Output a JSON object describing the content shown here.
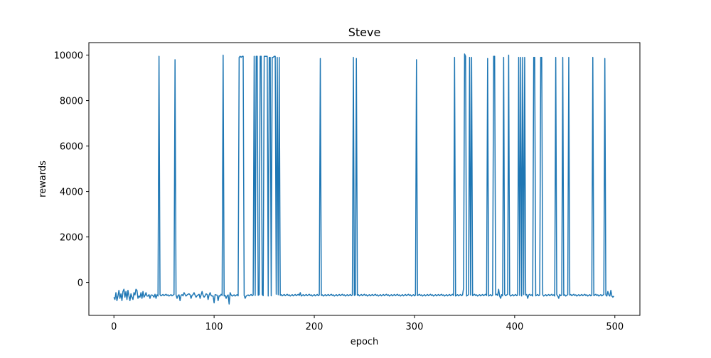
{
  "chart_data": {
    "type": "line",
    "title": "Steve",
    "xlabel": "epoch",
    "ylabel": "rewards",
    "xlim": [
      -25,
      525
    ],
    "ylim": [
      -1450,
      10550
    ],
    "x_ticks": [
      0,
      100,
      200,
      300,
      400,
      500
    ],
    "y_ticks": [
      0,
      2000,
      4000,
      6000,
      8000,
      10000
    ],
    "x_tick_labels": [
      "0",
      "100",
      "200",
      "300",
      "400",
      "500"
    ],
    "y_tick_labels": [
      "0",
      "2000",
      "4000",
      "6000",
      "8000",
      "10000"
    ],
    "grid": false,
    "legend": "none",
    "series": [
      {
        "color": "#1f77b4",
        "baseline": -560,
        "x_range": [
          0,
          499
        ],
        "spikes": [
          {
            "x": 45,
            "y": 9950
          },
          {
            "x": 61,
            "y": 9800
          },
          {
            "x": 109,
            "y": 10000
          },
          {
            "x": 125,
            "y": 9900
          },
          {
            "x": 126,
            "y": 9950
          },
          {
            "x": 127,
            "y": 9900
          },
          {
            "x": 128,
            "y": 9950
          },
          {
            "x": 129,
            "y": 9950
          },
          {
            "x": 140,
            "y": 9950
          },
          {
            "x": 142,
            "y": 9950
          },
          {
            "x": 143,
            "y": 9950
          },
          {
            "x": 146,
            "y": 9950
          },
          {
            "x": 147,
            "y": 9950
          },
          {
            "x": 150,
            "y": 9950
          },
          {
            "x": 151,
            "y": 9950
          },
          {
            "x": 152,
            "y": 9950
          },
          {
            "x": 153,
            "y": 9950
          },
          {
            "x": 155,
            "y": 9900
          },
          {
            "x": 156,
            "y": 9900
          },
          {
            "x": 158,
            "y": 9900
          },
          {
            "x": 159,
            "y": 9900
          },
          {
            "x": 160,
            "y": 9950
          },
          {
            "x": 161,
            "y": 9950
          },
          {
            "x": 163,
            "y": 9900
          },
          {
            "x": 165,
            "y": 9900
          },
          {
            "x": 206,
            "y": 9850
          },
          {
            "x": 239,
            "y": 9900
          },
          {
            "x": 242,
            "y": 9850
          },
          {
            "x": 302,
            "y": 9800
          },
          {
            "x": 340,
            "y": 9900
          },
          {
            "x": 350,
            "y": 10050
          },
          {
            "x": 351,
            "y": 9950
          },
          {
            "x": 355,
            "y": 9900
          },
          {
            "x": 357,
            "y": 9900
          },
          {
            "x": 373,
            "y": 9850
          },
          {
            "x": 379,
            "y": 9950
          },
          {
            "x": 380,
            "y": 9950
          },
          {
            "x": 389,
            "y": 9900
          },
          {
            "x": 394,
            "y": 10000
          },
          {
            "x": 404,
            "y": 9900
          },
          {
            "x": 406,
            "y": 9900
          },
          {
            "x": 408,
            "y": 9900
          },
          {
            "x": 410,
            "y": 9900
          },
          {
            "x": 419,
            "y": 9900
          },
          {
            "x": 420,
            "y": 9900
          },
          {
            "x": 426,
            "y": 9900
          },
          {
            "x": 427,
            "y": 9900
          },
          {
            "x": 441,
            "y": 9900
          },
          {
            "x": 448,
            "y": 9900
          },
          {
            "x": 454,
            "y": 9900
          },
          {
            "x": 478,
            "y": 9900
          },
          {
            "x": 490,
            "y": 9850
          }
        ],
        "overrides": [
          {
            "x": 0,
            "y": -650
          },
          {
            "x": 1,
            "y": -750
          },
          {
            "x": 2,
            "y": -450
          },
          {
            "x": 3,
            "y": -800
          },
          {
            "x": 4,
            "y": -600
          },
          {
            "x": 5,
            "y": -350
          },
          {
            "x": 6,
            "y": -700
          },
          {
            "x": 7,
            "y": -500
          },
          {
            "x": 8,
            "y": -800
          },
          {
            "x": 9,
            "y": -400
          },
          {
            "x": 10,
            "y": -300
          },
          {
            "x": 11,
            "y": -650
          },
          {
            "x": 12,
            "y": -400
          },
          {
            "x": 13,
            "y": -750
          },
          {
            "x": 14,
            "y": -350
          },
          {
            "x": 15,
            "y": -600
          },
          {
            "x": 16,
            "y": -800
          },
          {
            "x": 17,
            "y": -500
          },
          {
            "x": 18,
            "y": -650
          },
          {
            "x": 19,
            "y": -750
          },
          {
            "x": 20,
            "y": -450
          },
          {
            "x": 21,
            "y": -550
          },
          {
            "x": 22,
            "y": -300
          },
          {
            "x": 23,
            "y": -350
          },
          {
            "x": 24,
            "y": -700
          },
          {
            "x": 25,
            "y": -600
          },
          {
            "x": 26,
            "y": -650
          },
          {
            "x": 27,
            "y": -450
          },
          {
            "x": 28,
            "y": -700
          },
          {
            "x": 29,
            "y": -400
          },
          {
            "x": 30,
            "y": -650
          },
          {
            "x": 32,
            "y": -450
          },
          {
            "x": 34,
            "y": -600
          },
          {
            "x": 36,
            "y": -700
          },
          {
            "x": 38,
            "y": -550
          },
          {
            "x": 40,
            "y": -650
          },
          {
            "x": 42,
            "y": -700
          },
          {
            "x": 63,
            "y": -700
          },
          {
            "x": 66,
            "y": -800
          },
          {
            "x": 70,
            "y": -450
          },
          {
            "x": 72,
            "y": -600
          },
          {
            "x": 75,
            "y": -500
          },
          {
            "x": 77,
            "y": -700
          },
          {
            "x": 80,
            "y": -450
          },
          {
            "x": 82,
            "y": -650
          },
          {
            "x": 84,
            "y": -550
          },
          {
            "x": 86,
            "y": -700
          },
          {
            "x": 88,
            "y": -400
          },
          {
            "x": 90,
            "y": -650
          },
          {
            "x": 92,
            "y": -500
          },
          {
            "x": 94,
            "y": -750
          },
          {
            "x": 96,
            "y": -450
          },
          {
            "x": 98,
            "y": -600
          },
          {
            "x": 100,
            "y": -900
          },
          {
            "x": 102,
            "y": -550
          },
          {
            "x": 104,
            "y": -800
          },
          {
            "x": 106,
            "y": -600
          },
          {
            "x": 112,
            "y": -700
          },
          {
            "x": 114,
            "y": -550
          },
          {
            "x": 115,
            "y": -950
          },
          {
            "x": 116,
            "y": -450
          },
          {
            "x": 118,
            "y": -600
          },
          {
            "x": 131,
            "y": -700
          },
          {
            "x": 134,
            "y": -550
          },
          {
            "x": 186,
            "y": -450
          },
          {
            "x": 349,
            "y": -250
          },
          {
            "x": 384,
            "y": -300
          },
          {
            "x": 386,
            "y": -700
          },
          {
            "x": 413,
            "y": -700
          },
          {
            "x": 444,
            "y": -700
          },
          {
            "x": 492,
            "y": -600
          },
          {
            "x": 493,
            "y": -400
          },
          {
            "x": 494,
            "y": -550
          },
          {
            "x": 495,
            "y": -600
          },
          {
            "x": 496,
            "y": -350
          },
          {
            "x": 497,
            "y": -600
          },
          {
            "x": 498,
            "y": -650
          },
          {
            "x": 499,
            "y": -600
          }
        ]
      }
    ]
  }
}
